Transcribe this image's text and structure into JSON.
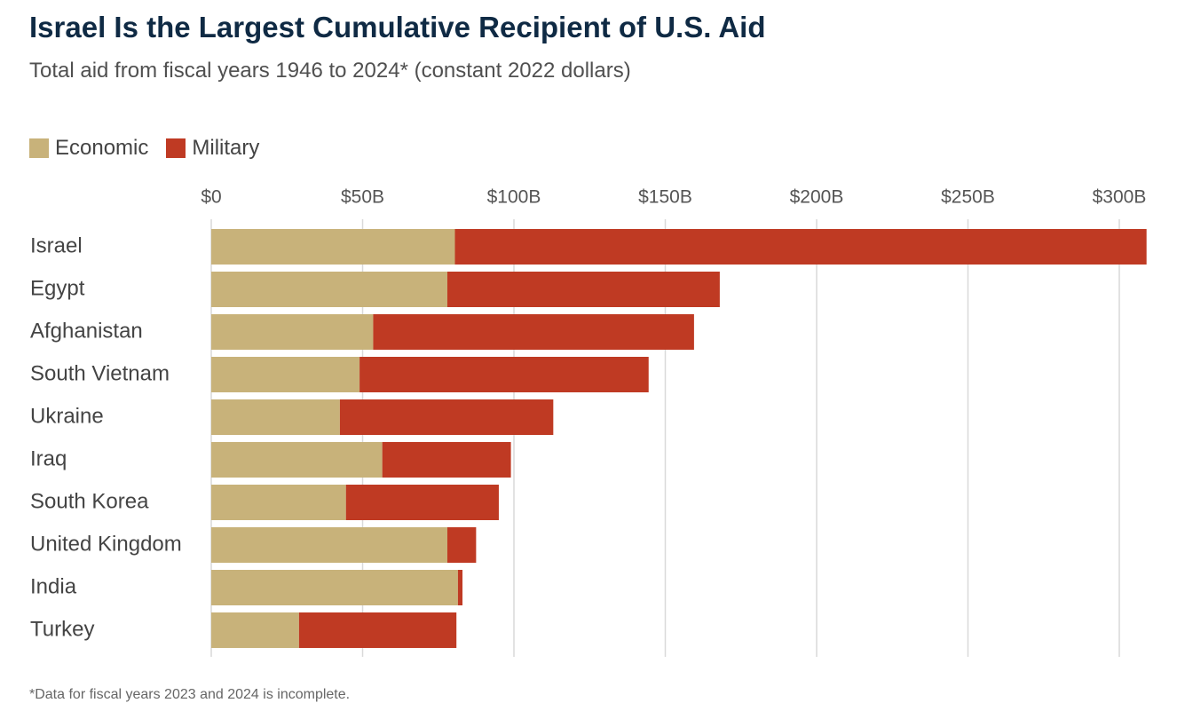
{
  "title": "Israel Is the Largest Cumulative Recipient of U.S. Aid",
  "subtitle": "Total aid from fiscal years 1946 to 2024* (constant 2022 dollars)",
  "legend": [
    {
      "label": "Economic",
      "color": "#c8b27a"
    },
    {
      "label": "Military",
      "color": "#bf3a23"
    }
  ],
  "footnote": "*Data for fiscal years 2023 and 2024 is incomplete.",
  "chart_data": {
    "type": "bar",
    "orientation": "horizontal",
    "stacked": true,
    "categories": [
      "Israel",
      "Egypt",
      "Afghanistan",
      "South Vietnam",
      "Ukraine",
      "Iraq",
      "South Korea",
      "United Kingdom",
      "India",
      "Turkey"
    ],
    "series": [
      {
        "name": "Economic",
        "color": "#c8b27a",
        "values": [
          80.5,
          78,
          53.5,
          49,
          42.5,
          56.5,
          44.5,
          78,
          81.5,
          29
        ]
      },
      {
        "name": "Military",
        "color": "#bf3a23",
        "values": [
          228.5,
          90,
          106,
          95.5,
          70.5,
          42.5,
          50.5,
          9.5,
          1.5,
          52
        ]
      }
    ],
    "xlim": [
      0,
      310
    ],
    "ticks": [
      0,
      50,
      100,
      150,
      200,
      250,
      300
    ],
    "tick_labels": [
      "$0",
      "$50B",
      "$100B",
      "$150B",
      "$200B",
      "$250B",
      "$300B"
    ],
    "grid": true,
    "axis_position": "top",
    "legend_position": "top-left"
  }
}
